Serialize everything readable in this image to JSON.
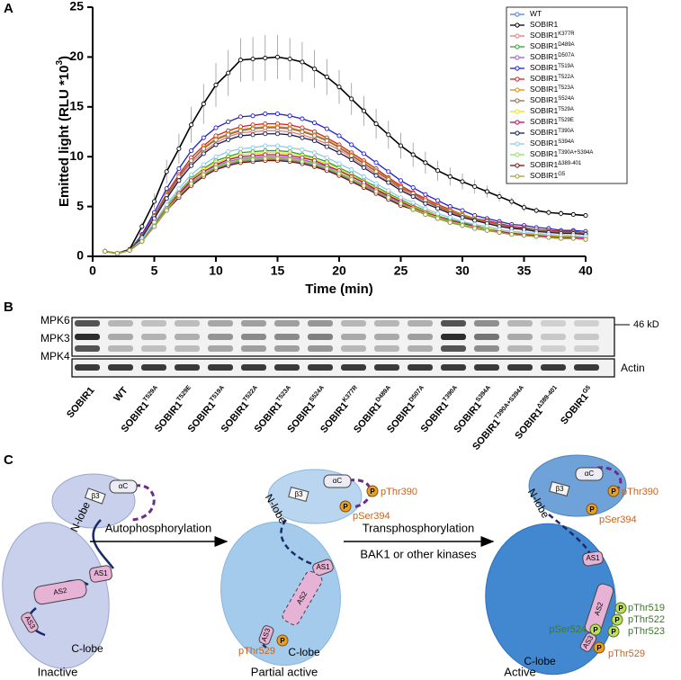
{
  "panel_labels": [
    "A",
    "B",
    "C"
  ],
  "chart_data": {
    "type": "line",
    "xlabel": "Time (min)",
    "ylabel": "Emitted light (RLU *10",
    "ylabel_sup": "3",
    "ylabel_end": ")",
    "x": [
      1,
      2,
      3,
      4,
      5,
      6,
      7,
      8,
      9,
      10,
      11,
      12,
      13,
      14,
      15,
      16,
      17,
      18,
      19,
      20,
      21,
      22,
      23,
      24,
      25,
      26,
      27,
      28,
      29,
      30,
      31,
      32,
      33,
      34,
      35,
      36,
      37,
      38,
      39,
      40
    ],
    "xlim": [
      0,
      40
    ],
    "xticks": [
      0,
      5,
      10,
      15,
      20,
      25,
      30,
      35,
      40
    ],
    "ylim": [
      0,
      25
    ],
    "yticks": [
      0,
      5,
      10,
      15,
      20,
      25
    ],
    "legend": "upper right",
    "series": [
      {
        "name": "WT",
        "color": "#4a7fd4",
        "values": [
          0.5,
          0.3,
          0.6,
          1.5,
          3.0,
          4.6,
          6.0,
          7.2,
          8.1,
          8.8,
          9.2,
          9.5,
          9.6,
          9.7,
          9.7,
          9.6,
          9.4,
          9.1,
          8.7,
          8.2,
          7.6,
          7.0,
          6.4,
          5.8,
          5.2,
          4.7,
          4.2,
          3.8,
          3.4,
          3.1,
          2.8,
          2.6,
          2.4,
          2.2,
          2.1,
          2.0,
          1.9,
          1.8,
          1.8,
          1.7
        ]
      },
      {
        "name": "SOBIR1",
        "color": "#000000",
        "values": [
          0.5,
          0.3,
          0.7,
          3.0,
          5.5,
          8.5,
          10.8,
          13.2,
          15.3,
          17.2,
          18.4,
          19.7,
          19.8,
          19.9,
          20.0,
          19.8,
          19.5,
          18.8,
          18.0,
          17.0,
          15.8,
          14.6,
          13.3,
          12.2,
          11.1,
          10.2,
          9.4,
          8.6,
          8.0,
          7.5,
          7.0,
          6.5,
          6.0,
          5.5,
          4.9,
          4.6,
          4.4,
          4.3,
          4.2,
          4.1
        ],
        "errors": [
          0.1,
          0.1,
          0.2,
          0.4,
          0.8,
          1.2,
          1.5,
          1.8,
          2.0,
          2.2,
          2.3,
          2.2,
          2.2,
          2.3,
          2.2,
          2.1,
          2.0,
          1.9,
          1.8,
          1.7,
          1.6,
          1.5,
          1.5,
          1.4,
          1.3,
          1.2,
          1.1,
          1.0,
          0.9,
          0.8,
          0.7,
          0.6,
          0.5,
          0.4,
          0.4,
          0.3,
          0.3,
          0.3,
          0.2,
          0.2
        ]
      },
      {
        "name": "SOBIR1",
        "superscript": "K377R",
        "color": "#e07a7a",
        "values": [
          0.5,
          0.3,
          0.6,
          2.0,
          3.9,
          6.0,
          7.8,
          9.4,
          10.5,
          11.4,
          12.0,
          12.4,
          12.5,
          12.6,
          12.6,
          12.5,
          12.2,
          11.8,
          11.3,
          10.7,
          9.9,
          9.1,
          8.3,
          7.5,
          6.8,
          6.1,
          5.5,
          4.9,
          4.4,
          4.0,
          3.6,
          3.4,
          3.1,
          2.9,
          2.7,
          2.6,
          2.5,
          2.3,
          2.3,
          2.2
        ]
      },
      {
        "name": "SOBIR1",
        "superscript": "D489A",
        "color": "#2ca02c",
        "values": [
          0.5,
          0.3,
          0.6,
          1.6,
          3.3,
          5.0,
          6.5,
          7.8,
          8.8,
          9.6,
          10.0,
          10.4,
          10.5,
          10.6,
          10.6,
          10.5,
          10.2,
          9.9,
          9.5,
          8.9,
          8.3,
          7.6,
          7.0,
          6.3,
          5.7,
          5.1,
          4.6,
          4.1,
          3.7,
          3.4,
          3.1,
          2.8,
          2.6,
          2.4,
          2.3,
          2.2,
          2.1,
          2.0,
          2.0,
          1.9
        ]
      },
      {
        "name": "SOBIR1",
        "superscript": "D507A",
        "color": "#9b59d0",
        "values": [
          0.5,
          0.3,
          0.6,
          1.5,
          3.1,
          4.7,
          6.2,
          7.4,
          8.3,
          9.1,
          9.5,
          9.8,
          9.9,
          10.0,
          10.0,
          9.9,
          9.7,
          9.4,
          9.0,
          8.4,
          7.8,
          7.2,
          6.6,
          6.0,
          5.4,
          4.8,
          4.3,
          3.9,
          3.5,
          3.2,
          2.9,
          2.7,
          2.5,
          2.3,
          2.2,
          2.1,
          2.0,
          1.9,
          1.9,
          1.8
        ]
      },
      {
        "name": "SOBIR1",
        "superscript": "T519A",
        "color": "#1f1fd0",
        "values": [
          0.5,
          0.3,
          0.6,
          2.2,
          4.4,
          6.8,
          8.8,
          10.6,
          11.9,
          12.9,
          13.5,
          14.0,
          14.1,
          14.3,
          14.3,
          14.1,
          13.8,
          13.4,
          12.8,
          12.1,
          11.2,
          10.3,
          9.4,
          8.5,
          7.6,
          6.9,
          6.2,
          5.6,
          5.0,
          4.6,
          4.1,
          3.8,
          3.5,
          3.2,
          3.1,
          2.9,
          2.8,
          2.6,
          2.6,
          2.5
        ]
      },
      {
        "name": "SOBIR1",
        "superscript": "T522A",
        "color": "#d02020",
        "values": [
          0.5,
          0.3,
          0.6,
          2.1,
          4.1,
          6.3,
          8.2,
          9.9,
          11.1,
          12.1,
          12.6,
          13.0,
          13.2,
          13.3,
          13.3,
          13.2,
          12.9,
          12.5,
          11.9,
          11.2,
          10.4,
          9.6,
          8.8,
          7.9,
          7.1,
          6.4,
          5.8,
          5.2,
          4.7,
          4.2,
          3.8,
          3.6,
          3.3,
          3.0,
          2.9,
          2.7,
          2.6,
          2.5,
          2.5,
          2.3
        ]
      },
      {
        "name": "SOBIR1",
        "superscript": "T523A",
        "color": "#e08a00",
        "values": [
          0.5,
          0.3,
          0.6,
          2.0,
          4.0,
          6.2,
          8.0,
          9.6,
          10.9,
          11.8,
          12.3,
          12.7,
          12.9,
          13.0,
          13.0,
          12.9,
          12.6,
          12.2,
          11.7,
          11.0,
          10.2,
          9.4,
          8.6,
          7.8,
          7.0,
          6.3,
          5.6,
          5.1,
          4.6,
          4.2,
          3.8,
          3.5,
          3.2,
          2.9,
          2.8,
          2.7,
          2.5,
          2.4,
          2.4,
          2.3
        ]
      },
      {
        "name": "SOBIR1",
        "superscript": "S524A",
        "color": "#8a6a4a",
        "values": [
          0.5,
          0.3,
          0.6,
          2.0,
          4.0,
          6.1,
          8.0,
          9.6,
          10.8,
          11.7,
          12.2,
          12.6,
          12.8,
          12.9,
          12.9,
          12.8,
          12.5,
          12.1,
          11.6,
          10.9,
          10.1,
          9.3,
          8.5,
          7.7,
          6.9,
          6.3,
          5.6,
          5.0,
          4.5,
          4.1,
          3.7,
          3.5,
          3.2,
          2.9,
          2.8,
          2.7,
          2.5,
          2.4,
          2.4,
          2.3
        ]
      },
      {
        "name": "SOBIR1",
        "superscript": "T529A",
        "color": "#e8e020",
        "values": [
          0.5,
          0.3,
          0.6,
          1.6,
          3.2,
          4.9,
          6.4,
          7.7,
          8.7,
          9.4,
          9.8,
          10.2,
          10.3,
          10.4,
          10.4,
          10.3,
          10.1,
          9.7,
          9.3,
          8.8,
          8.1,
          7.5,
          6.8,
          6.2,
          5.6,
          5.0,
          4.5,
          4.1,
          3.6,
          3.3,
          3.0,
          2.8,
          2.6,
          2.4,
          2.3,
          2.2,
          2.1,
          2.0,
          2.0,
          1.9
        ]
      },
      {
        "name": "SOBIR1",
        "superscript": "T529E",
        "color": "#b0105a",
        "values": [
          0.5,
          0.3,
          0.6,
          1.6,
          3.2,
          4.8,
          6.3,
          7.6,
          8.5,
          9.2,
          9.7,
          10.0,
          10.1,
          10.2,
          10.2,
          10.1,
          9.9,
          9.6,
          9.1,
          8.6,
          8.0,
          7.4,
          6.7,
          6.1,
          5.5,
          4.9,
          4.4,
          4.0,
          3.6,
          3.3,
          3.0,
          2.7,
          2.5,
          2.3,
          2.2,
          2.1,
          2.0,
          1.9,
          1.9,
          1.8
        ]
      },
      {
        "name": "SOBIR1",
        "superscript": "T390A",
        "color": "#1a1a4a",
        "values": [
          0.5,
          0.3,
          0.6,
          1.9,
          3.8,
          5.8,
          7.6,
          9.1,
          10.3,
          11.2,
          11.7,
          12.1,
          12.2,
          12.3,
          12.3,
          12.2,
          11.9,
          11.6,
          11.0,
          10.4,
          9.7,
          8.9,
          8.1,
          7.4,
          6.6,
          6.0,
          5.3,
          4.8,
          4.3,
          3.9,
          3.6,
          3.3,
          3.0,
          2.8,
          2.7,
          2.5,
          2.4,
          2.3,
          2.3,
          2.2
        ]
      },
      {
        "name": "SOBIR1",
        "superscript": "S394A",
        "color": "#8ec8e8",
        "values": [
          0.5,
          0.3,
          0.6,
          1.7,
          3.4,
          5.2,
          6.8,
          8.2,
          9.2,
          10.0,
          10.5,
          10.8,
          10.9,
          11.1,
          11.1,
          10.9,
          10.7,
          10.4,
          9.9,
          9.3,
          8.7,
          8.0,
          7.3,
          6.6,
          5.9,
          5.4,
          4.8,
          4.3,
          3.9,
          3.5,
          3.2,
          3.0,
          2.7,
          2.5,
          2.4,
          2.3,
          2.2,
          2.1,
          2.1,
          2.0
        ]
      },
      {
        "name": "SOBIR1",
        "superscript": "T390A+S394A",
        "color": "#90e060",
        "values": [
          0.5,
          0.3,
          0.6,
          1.5,
          3.1,
          4.7,
          6.1,
          7.3,
          8.3,
          9.0,
          9.4,
          9.7,
          9.8,
          9.9,
          9.9,
          9.8,
          9.6,
          9.3,
          8.9,
          8.4,
          7.8,
          7.1,
          6.5,
          5.9,
          5.3,
          4.8,
          4.3,
          3.9,
          3.5,
          3.2,
          2.9,
          2.7,
          2.4,
          2.2,
          2.1,
          2.0,
          1.9,
          1.8,
          1.8,
          1.7
        ]
      },
      {
        "name": "SOBIR1",
        "superscript": "Δ389-401",
        "color": "#7a1010",
        "values": [
          0.5,
          0.3,
          0.6,
          1.5,
          3.0,
          4.6,
          5.9,
          7.1,
          8.0,
          8.7,
          9.1,
          9.4,
          9.5,
          9.6,
          9.6,
          9.5,
          9.3,
          9.0,
          8.6,
          8.1,
          7.5,
          6.9,
          6.3,
          5.7,
          5.1,
          4.7,
          4.2,
          3.8,
          3.4,
          3.1,
          2.8,
          2.6,
          2.4,
          2.2,
          2.1,
          2.0,
          1.9,
          1.8,
          1.8,
          1.7
        ]
      },
      {
        "name": "SOBIR1",
        "superscript": "G5",
        "color": "#a0a040",
        "values": [
          0.5,
          0.3,
          0.6,
          1.5,
          3.0,
          4.6,
          6.1,
          7.3,
          8.2,
          8.9,
          9.3,
          9.6,
          9.7,
          9.8,
          9.8,
          9.7,
          9.5,
          9.2,
          8.8,
          8.3,
          7.7,
          7.1,
          6.5,
          5.9,
          5.3,
          4.7,
          4.2,
          3.8,
          3.4,
          3.1,
          2.8,
          2.6,
          2.4,
          2.2,
          2.1,
          2.0,
          1.9,
          1.8,
          1.8,
          1.7
        ]
      }
    ]
  },
  "blot": {
    "bands": [
      "MPK6",
      "MPK3",
      "MPK4"
    ],
    "marker": "46 kD",
    "loading": "Actin",
    "lanes": [
      {
        "name": "SOBIR1"
      },
      {
        "name": "WT"
      },
      {
        "name": "SOBIR1",
        "superscript": "T529A"
      },
      {
        "name": "SOBIR1",
        "superscript": "T529E"
      },
      {
        "name": "SOBIR1",
        "superscript": "T519A"
      },
      {
        "name": "SOBIR1",
        "superscript": "T522A"
      },
      {
        "name": "SOBIR1",
        "superscript": "T523A"
      },
      {
        "name": "SOBIR1",
        "superscript": "S524A"
      },
      {
        "name": "SOBIR1",
        "superscript": "K377R"
      },
      {
        "name": "SOBIR1",
        "superscript": "D489A"
      },
      {
        "name": "SOBIR1",
        "superscript": "D507A"
      },
      {
        "name": "SOBIR1",
        "superscript": "T390A"
      },
      {
        "name": "SOBIR1",
        "superscript": "S394A"
      },
      {
        "name": "SOBIR1",
        "superscript": "T390A+S394A"
      },
      {
        "name": "SOBIR1",
        "superscript": "Δ389-401"
      },
      {
        "name": "SOBIR1",
        "superscript": "G5"
      }
    ]
  },
  "diagram": {
    "phospho": "P",
    "arrows": [
      {
        "label": "Autophosphorylation"
      },
      {
        "label": "Transphosphorylation",
        "sublabel": "BAK1 or other kinases"
      }
    ],
    "states": [
      {
        "caption": "Inactive",
        "n_lobe": "N-lobe",
        "c_lobe": "C-lobe",
        "helix": "αC",
        "strand": "β3",
        "segments": [
          "AS1",
          "AS2",
          "AS3"
        ],
        "sites": []
      },
      {
        "caption": "Partial active",
        "n_lobe": "N-lobe",
        "c_lobe": "C-lobe",
        "helix": "αC",
        "strand": "β3",
        "segments": [
          "AS1",
          "AS2",
          "AS3"
        ],
        "sites": [
          "pThr390",
          "pSer394",
          "pThr529"
        ]
      },
      {
        "caption": "Active",
        "n_lobe": "N-lobe",
        "c_lobe": "C-lobe",
        "helix": "αC",
        "strand": "β3",
        "segments": [
          "AS1",
          "AS2",
          "AS3"
        ],
        "sites": [
          "pThr390",
          "pSer394",
          "pThr519",
          "pThr522",
          "pThr523",
          "pSer524",
          "pThr529"
        ]
      }
    ]
  }
}
